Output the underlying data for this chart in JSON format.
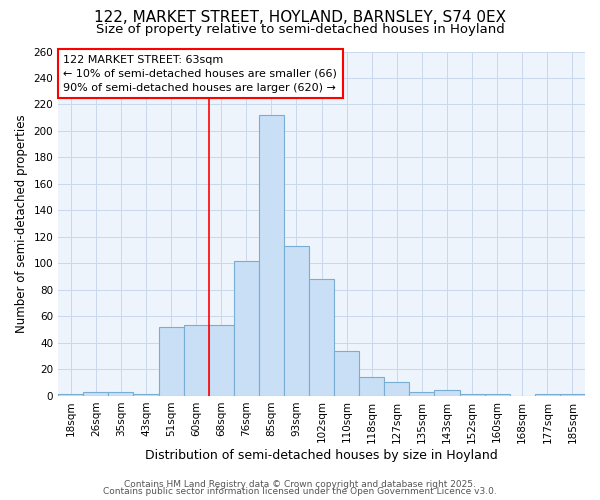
{
  "title_line1": "122, MARKET STREET, HOYLAND, BARNSLEY, S74 0EX",
  "title_line2": "Size of property relative to semi-detached houses in Hoyland",
  "xlabel": "Distribution of semi-detached houses by size in Hoyland",
  "ylabel": "Number of semi-detached properties",
  "categories": [
    "18sqm",
    "26sqm",
    "35sqm",
    "43sqm",
    "51sqm",
    "60sqm",
    "68sqm",
    "76sqm",
    "85sqm",
    "93sqm",
    "102sqm",
    "110sqm",
    "118sqm",
    "127sqm",
    "135sqm",
    "143sqm",
    "152sqm",
    "160sqm",
    "168sqm",
    "177sqm",
    "185sqm"
  ],
  "values": [
    1,
    3,
    3,
    1,
    52,
    53,
    53,
    102,
    212,
    113,
    88,
    34,
    14,
    10,
    3,
    4,
    1,
    1,
    0,
    1,
    1
  ],
  "bar_color": "#c8dff5",
  "bar_edge_color": "#7aadd4",
  "bar_edge_width": 0.8,
  "vline_x": 6.0,
  "vline_color": "red",
  "vline_linewidth": 1.2,
  "annotation_line1": "122 MARKET STREET: 63sqm",
  "annotation_line2": "← 10% of semi-detached houses are smaller (66)",
  "annotation_line3": "90% of semi-detached houses are larger (620) →",
  "annotation_box_color": "red",
  "annotation_fontsize": 8.0,
  "ylim": [
    0,
    260
  ],
  "yticks": [
    0,
    20,
    40,
    60,
    80,
    100,
    120,
    140,
    160,
    180,
    200,
    220,
    240,
    260
  ],
  "background_color": "#ffffff",
  "plot_bg_color": "#eef4fc",
  "grid_color": "#c8d8ec",
  "footer_line1": "Contains HM Land Registry data © Crown copyright and database right 2025.",
  "footer_line2": "Contains public sector information licensed under the Open Government Licence v3.0.",
  "title_fontsize": 11,
  "subtitle_fontsize": 9.5,
  "xlabel_fontsize": 9,
  "ylabel_fontsize": 8.5,
  "tick_fontsize": 7.5,
  "footer_fontsize": 6.5
}
